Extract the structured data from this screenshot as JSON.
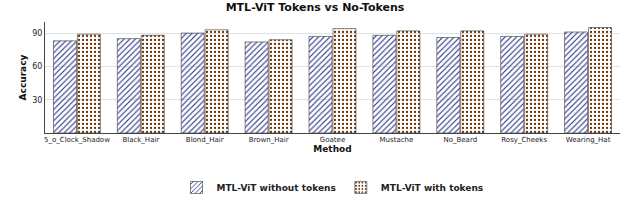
{
  "chart_data": {
    "type": "bar",
    "title": "MTL-ViT Tokens vs No-Tokens",
    "x_label": "Method",
    "y_label": "Accuracy",
    "categories": [
      "5_o_Clock_Shadow",
      "Black_Hair",
      "Blond_Hair",
      "Brown_Hair",
      "Goatee",
      "Mustache",
      "No_Beard",
      "Rosy_Cheeks",
      "Wearing_Hat"
    ],
    "series": [
      {
        "name": "MTL-ViT without tokens",
        "color": "#2b44c4",
        "values": [
          83,
          85,
          90,
          82,
          87,
          88,
          86,
          87,
          91
        ]
      },
      {
        "name": "MTL-ViT with tokens",
        "color": "#e27a1e",
        "values": [
          89,
          88,
          93,
          84,
          94,
          92,
          92,
          89,
          95
        ]
      }
    ],
    "ylim": [
      0,
      100
    ],
    "yticks": [
      30,
      60,
      90
    ],
    "grid": true,
    "legend": "bottom"
  }
}
